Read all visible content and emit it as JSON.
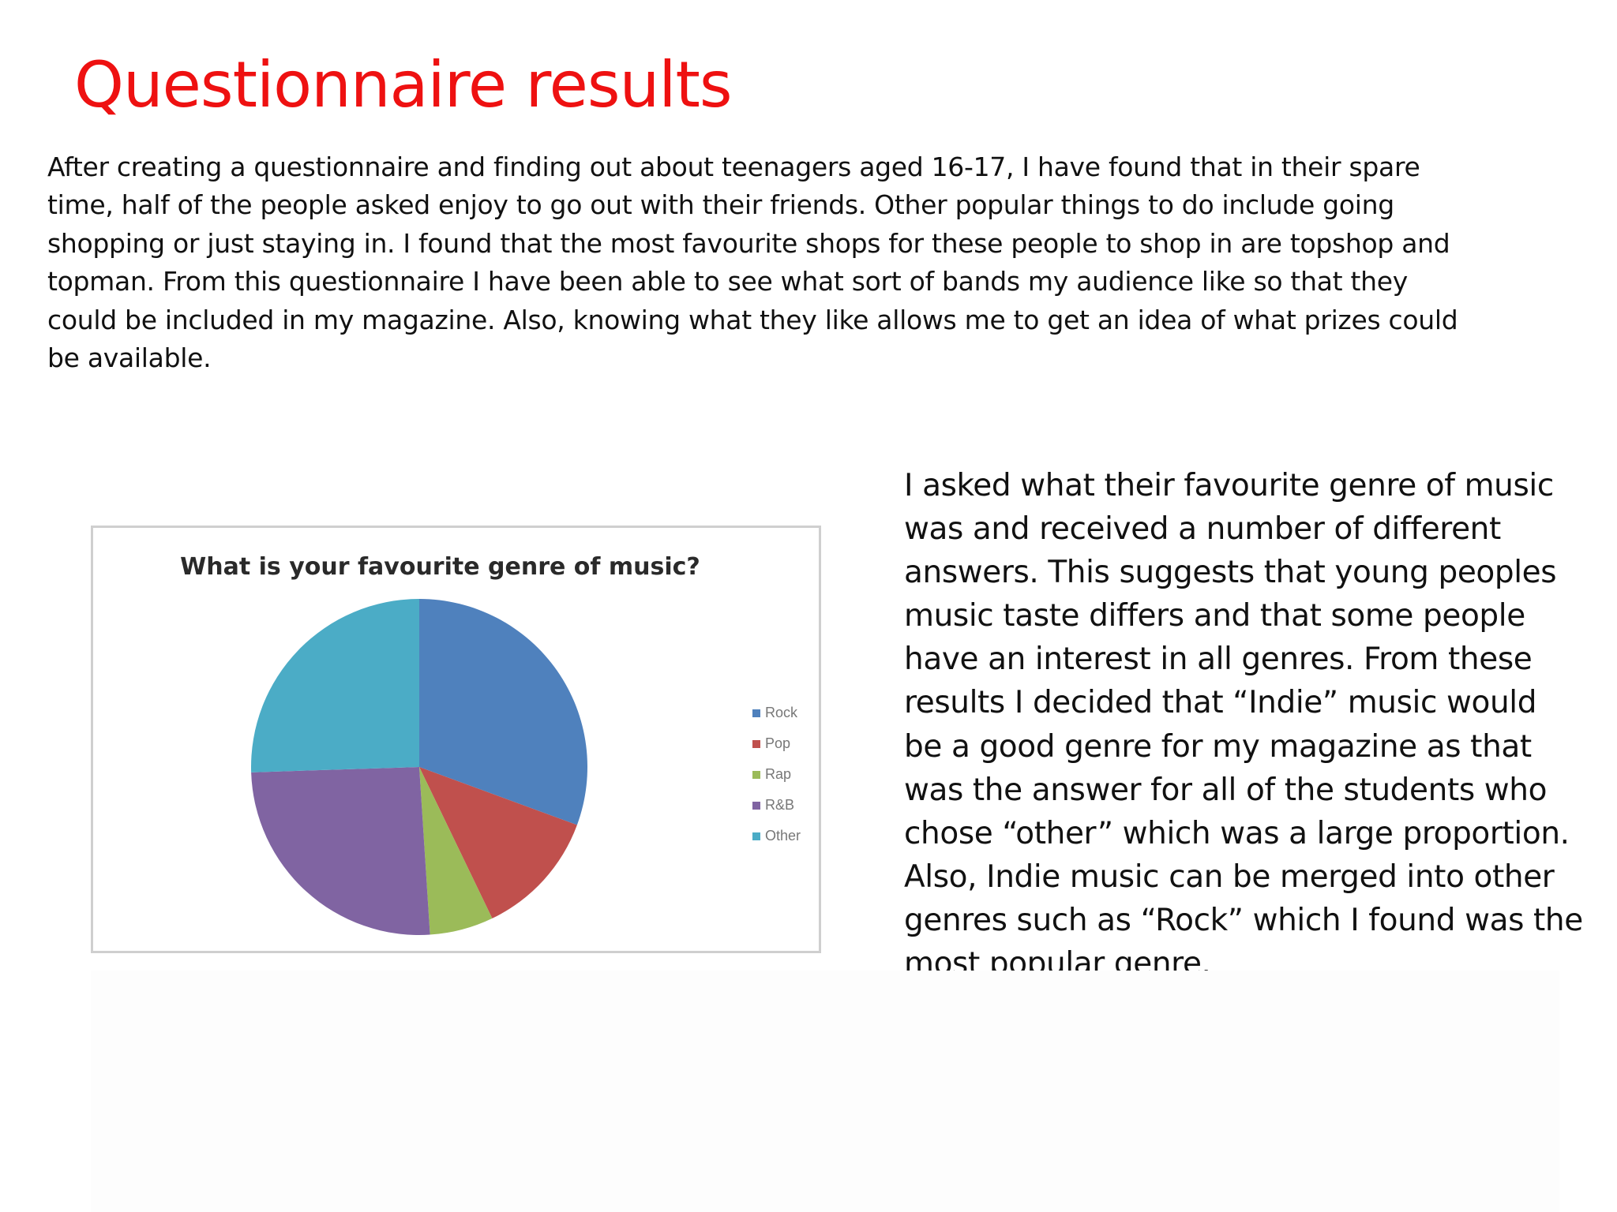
{
  "slide": {
    "title": "Questionnaire results",
    "intro_paragraph": "After creating a questionnaire and finding out about teenagers aged 16-17, I have found that in their spare time, half of the people asked enjoy to go out with their friends. Other popular things to do include going shopping or just staying in. I found that the most favourite shops for these people to shop in are topshop and topman. From this questionnaire I have been able to see what sort of bands my audience like so that they could be included in my magazine. Also, knowing what they like allows me to get an idea of what prizes could be available.",
    "genre_paragraph": "I asked what their favourite genre of music was and received a number of different answers. This suggests that young peoples music taste differs and that some people have an interest in all genres. From these results I decided that “Indie” music would be a good genre for my magazine as that was the answer for all of the students who chose “other” which was a large proportion. Also, Indie music can be merged into other genres such as “Rock” which I found was the most popular genre."
  },
  "chart_data": {
    "type": "pie",
    "title": "What is your favourite genre of music?",
    "categories": [
      "Rock",
      "Pop",
      "Rap",
      "R&B",
      "Other"
    ],
    "values": [
      30,
      12,
      6,
      25,
      25
    ],
    "colors": [
      "#4f81bd",
      "#c0504d",
      "#9bbb59",
      "#8064a2",
      "#4bacc6"
    ],
    "legend_position": "right"
  }
}
